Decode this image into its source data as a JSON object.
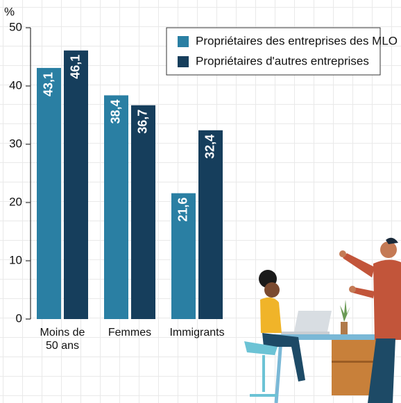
{
  "chart_data": {
    "type": "bar",
    "y_label": "%",
    "categories": [
      "Moins de 50 ans",
      "Femmes",
      "Immigrants"
    ],
    "series": [
      {
        "name": "Propriétaires des entreprises des MLO",
        "color": "#2a7fa3",
        "values": [
          43.1,
          38.4,
          21.6
        ],
        "value_labels": [
          "43,1",
          "38,4",
          "21,6"
        ]
      },
      {
        "name": "Propriétaires d'autres entreprises",
        "color": "#163e5c",
        "values": [
          46.1,
          36.7,
          32.4
        ],
        "value_labels": [
          "46,1",
          "36,7",
          "32,4"
        ]
      }
    ],
    "ylim": [
      0,
      50
    ],
    "yticks": [
      0,
      10,
      20,
      30,
      40,
      50
    ],
    "legend": "top-right"
  }
}
